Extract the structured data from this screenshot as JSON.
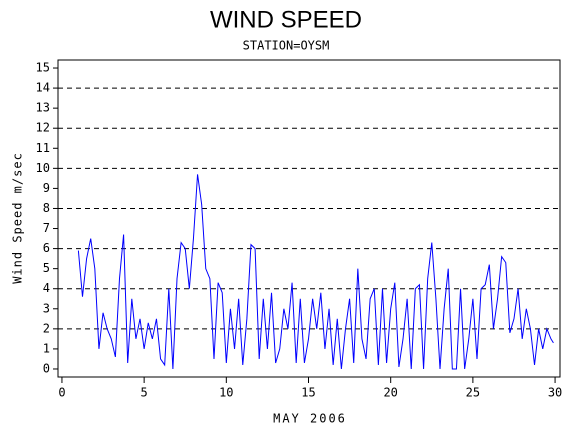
{
  "chart_data": {
    "type": "line",
    "title": "WIND SPEED",
    "subtitle": "STATION=OYSM",
    "y_label": "Wind Speed m/sec",
    "x_label": "MAY 2006",
    "color": "#0000ff",
    "grid_style": "dashed",
    "grid_values": [
      2,
      4,
      6,
      8,
      10,
      12,
      14
    ],
    "xlim": [
      -0.24,
      30.3
    ],
    "xticks": [
      0,
      5,
      10,
      15,
      20,
      25,
      30
    ],
    "ylim": [
      -0.4,
      15.4
    ],
    "yticks": [
      0,
      1,
      2,
      3,
      4,
      5,
      6,
      7,
      8,
      9,
      10,
      11,
      12,
      13,
      14,
      15
    ],
    "x": [
      1.0,
      1.25,
      1.5,
      1.75,
      2.0,
      2.25,
      2.5,
      2.75,
      3.0,
      3.25,
      3.5,
      3.75,
      4.0,
      4.25,
      4.5,
      4.75,
      5.0,
      5.25,
      5.5,
      5.75,
      6.0,
      6.25,
      6.5,
      6.75,
      7.0,
      7.25,
      7.5,
      7.75,
      8.0,
      8.25,
      8.5,
      8.75,
      9.0,
      9.25,
      9.5,
      9.75,
      10.0,
      10.25,
      10.5,
      10.75,
      11.0,
      11.25,
      11.5,
      11.75,
      12.0,
      12.25,
      12.5,
      12.75,
      13.0,
      13.25,
      13.5,
      13.75,
      14.0,
      14.25,
      14.5,
      14.75,
      15.0,
      15.25,
      15.5,
      15.75,
      16.0,
      16.25,
      16.5,
      16.75,
      17.0,
      17.25,
      17.5,
      17.75,
      18.0,
      18.25,
      18.5,
      18.75,
      19.0,
      19.25,
      19.5,
      19.75,
      20.0,
      20.25,
      20.5,
      20.75,
      21.0,
      21.25,
      21.5,
      21.75,
      22.0,
      22.25,
      22.5,
      22.75,
      23.0,
      23.25,
      23.5,
      23.75,
      24.0,
      24.25,
      24.5,
      24.75,
      25.0,
      25.25,
      25.5,
      25.75,
      26.0,
      26.25,
      26.5,
      26.75,
      27.0,
      27.25,
      27.5,
      27.75,
      28.0,
      28.25,
      28.5,
      28.75,
      29.0,
      29.25,
      29.5,
      29.75,
      29.9
    ],
    "values": [
      5.9,
      3.6,
      5.5,
      6.5,
      5.0,
      1.0,
      2.8,
      2.0,
      1.5,
      0.6,
      4.5,
      6.7,
      0.3,
      3.5,
      1.5,
      2.5,
      1.0,
      2.3,
      1.5,
      2.5,
      0.5,
      0.2,
      4.0,
      0,
      4.5,
      6.3,
      6.0,
      4.0,
      6.5,
      9.7,
      8.2,
      5.0,
      4.5,
      0.5,
      4.3,
      3.8,
      0.3,
      3.0,
      1.0,
      3.5,
      0.2,
      2.5,
      6.2,
      6.0,
      0.5,
      3.5,
      1.0,
      3.8,
      0.3,
      1.0,
      3.0,
      2.0,
      4.3,
      0.3,
      3.5,
      0.3,
      1.5,
      3.5,
      2.0,
      3.8,
      1.0,
      3.0,
      0.2,
      2.5,
      0,
      2.0,
      3.5,
      0.3,
      5.0,
      1.5,
      0.5,
      3.5,
      4.0,
      0.2,
      4.0,
      0.3,
      3.0,
      4.3,
      0.1,
      1.5,
      3.5,
      0,
      4.0,
      4.2,
      0,
      4.5,
      6.3,
      3.5,
      0,
      3.0,
      5.0,
      0,
      0,
      4.0,
      0,
      1.5,
      3.5,
      0.5,
      4.0,
      4.2,
      5.2,
      2.0,
      3.5,
      5.6,
      5.3,
      1.8,
      2.5,
      4.0,
      1.5,
      3.0,
      2.0,
      0.2,
      2.0,
      1.0,
      2.0,
      1.5,
      1.3
    ]
  }
}
